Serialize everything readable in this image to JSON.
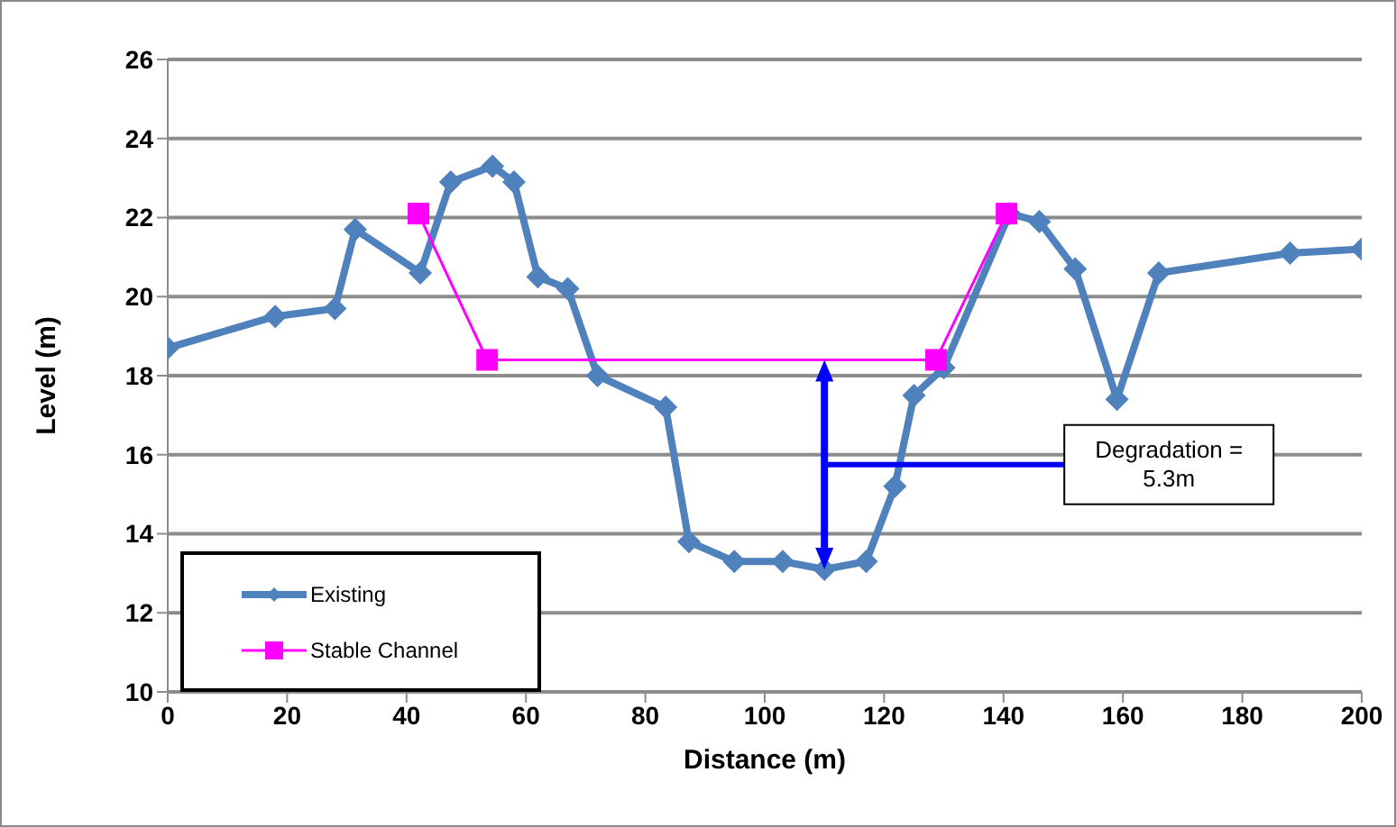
{
  "chart_data": {
    "type": "line",
    "xlabel": "Distance (m)",
    "ylabel": "Level (m)",
    "xlim": [
      0,
      200
    ],
    "xticks": [
      0,
      20,
      40,
      60,
      80,
      100,
      120,
      140,
      160,
      180,
      200
    ],
    "ylim": [
      10,
      26
    ],
    "yticks": [
      10,
      12,
      14,
      16,
      18,
      20,
      22,
      24,
      26
    ],
    "grid": "y",
    "legend": "bottom left",
    "series": [
      {
        "name": "Existing",
        "color": "#4f81bd",
        "marker": "diamond",
        "x": [
          0,
          18,
          28,
          31.4,
          42.3,
          47.4,
          54.4,
          58,
          62,
          67,
          72,
          83.4,
          87.3,
          94.9,
          103,
          110,
          117,
          121.8,
          125,
          130,
          141,
          146,
          152,
          159,
          166,
          188,
          200
        ],
        "values": [
          18.7,
          19.5,
          19.7,
          21.7,
          20.6,
          22.9,
          23.3,
          22.9,
          20.5,
          20.2,
          18.0,
          17.2,
          13.8,
          13.3,
          13.3,
          13.1,
          13.3,
          15.2,
          17.5,
          18.2,
          22.1,
          21.9,
          20.7,
          17.4,
          20.6,
          21.1,
          21.2
        ]
      },
      {
        "name": "Stable Channel",
        "color": "#ff00ff",
        "marker": "square",
        "x": [
          42,
          53.5,
          128.7,
          140.5
        ],
        "values": [
          22.1,
          18.4,
          18.4,
          22.1
        ]
      }
    ],
    "annotations": [
      "Degradation =\n5.3m"
    ]
  }
}
